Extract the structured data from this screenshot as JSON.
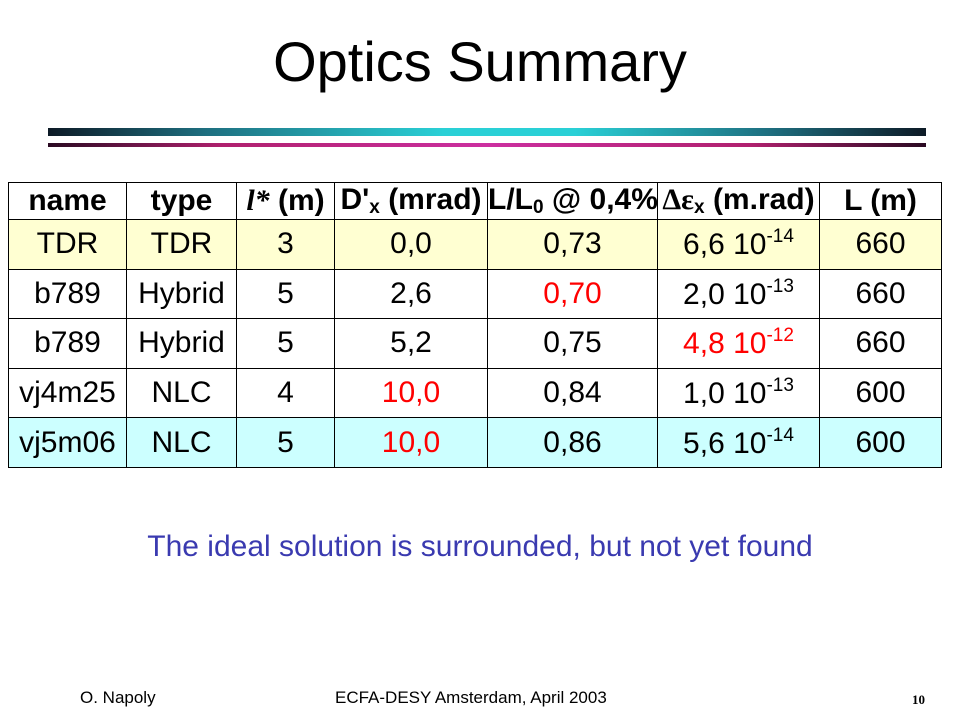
{
  "slide": {
    "title": "Optics Summary",
    "tagline": "The ideal solution is surrounded, but not yet found",
    "footer": {
      "author": "O. Napoly",
      "event": "ECFA-DESY Amsterdam, April 2003",
      "page": "10"
    }
  },
  "table": {
    "headers": {
      "name": "name",
      "type": "type",
      "lstar_symbol": "l*",
      "lstar_unit": "(m)",
      "dprime_prefix": "D'",
      "dprime_sub": "x",
      "dprime_unit": "(mrad)",
      "ratio_prefix": "L/L",
      "ratio_sub": "0",
      "ratio_at": "@ 0,4%",
      "emit_symbol": "Δε",
      "emit_sub": "x",
      "emit_unit": "(m.rad)",
      "length": "L (m)"
    },
    "rows": [
      {
        "name": "TDR",
        "type": "TDR",
        "lstar": "3",
        "dprime": "0,0",
        "ratio": "0,73",
        "emit_mant": "6,6 10",
        "emit_exp": "-14",
        "length": "660"
      },
      {
        "name": "b789",
        "type": "Hybrid",
        "lstar": "5",
        "dprime": "2,6",
        "ratio": "0,70",
        "emit_mant": "2,0 10",
        "emit_exp": "-13",
        "length": "660"
      },
      {
        "name": "b789",
        "type": "Hybrid",
        "lstar": "5",
        "dprime": "5,2",
        "ratio": "0,75",
        "emit_mant": "4,8 10",
        "emit_exp": "-12",
        "length": "660"
      },
      {
        "name": "vj4m25",
        "type": "NLC",
        "lstar": "4",
        "dprime": "10,0",
        "ratio": "0,84",
        "emit_mant": "1,0 10",
        "emit_exp": "-13",
        "length": "600"
      },
      {
        "name": "vj5m06",
        "type": "NLC",
        "lstar": "5",
        "dprime": "10,0",
        "ratio": "0,86",
        "emit_mant": "5,6 10",
        "emit_exp": "-14",
        "length": "600"
      }
    ]
  },
  "colors": {
    "highlight_value": "#ff0000",
    "row_tdr_bg": "#ffffd2",
    "row_best_bg": "#ccffff",
    "tagline": "#3a3ab0"
  }
}
